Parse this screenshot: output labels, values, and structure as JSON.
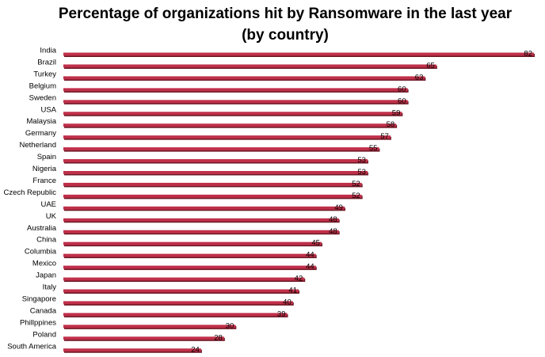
{
  "chart_data": {
    "type": "bar",
    "orientation": "horizontal",
    "title": "Percentage of organizations hit by Ransomware in the last year (by country)",
    "categories": [
      "India",
      "Brazil",
      "Turkey",
      "Belgium",
      "Sweden",
      "USA",
      "Malaysia",
      "Germany",
      "Netherland",
      "Spain",
      "Nigeria",
      "France",
      "Czech Republic",
      "UAE",
      "UK",
      "Australia",
      "China",
      "Columbia",
      "Mexico",
      "Japan",
      "Italy",
      "Singapore",
      "Canada",
      "Phillppines",
      "Poland",
      "South America"
    ],
    "values": [
      82,
      65,
      63,
      60,
      60,
      59,
      58,
      57,
      55,
      53,
      53,
      52,
      52,
      49,
      48,
      48,
      45,
      44,
      44,
      42,
      41,
      40,
      39,
      30,
      28,
      24
    ],
    "xlim": [
      0,
      82
    ],
    "grid": false,
    "legend": "none",
    "data_labels": true,
    "bar_color": "#c0304a",
    "bar_shadow_color": "#6b1622"
  }
}
